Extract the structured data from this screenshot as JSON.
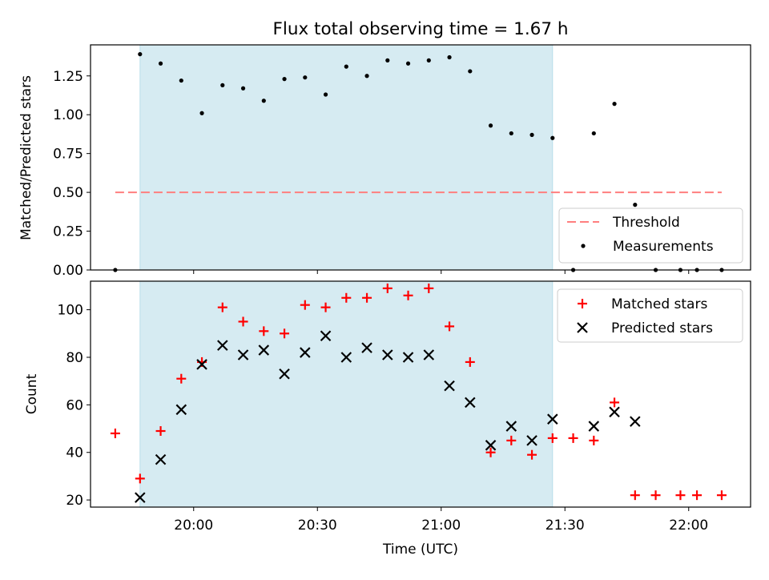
{
  "chart_data": [
    {
      "type": "scatter",
      "title": "Flux total observing time = 1.67 h",
      "xlabel": "",
      "ylabel": "Matched/Predicted stars",
      "ylim": [
        0,
        1.45
      ],
      "yticks": [
        "0.00",
        "0.25",
        "0.50",
        "0.75",
        "1.00",
        "1.25"
      ],
      "yticks_values": [
        0,
        0.25,
        0.5,
        0.75,
        1.0,
        1.25
      ],
      "observing_window": [
        "19:47",
        "21:27"
      ],
      "observing_window_color": "#add8e6",
      "threshold": {
        "name": "Threshold",
        "value": 0.5,
        "x": [
          "19:41",
          "22:08"
        ],
        "color": "#ff7f7f"
      },
      "series": [
        {
          "name": "Measurements",
          "color": "#000000",
          "x": [
            "19:41",
            "19:47",
            "19:52",
            "19:57",
            "20:02",
            "20:07",
            "20:12",
            "20:17",
            "20:22",
            "20:27",
            "20:32",
            "20:37",
            "20:42",
            "20:47",
            "20:52",
            "20:57",
            "21:02",
            "21:07",
            "21:12",
            "21:17",
            "21:22",
            "21:27",
            "21:32",
            "21:37",
            "21:42",
            "21:47",
            "21:52",
            "21:58",
            "22:02",
            "22:08"
          ],
          "y": [
            0.0,
            1.39,
            1.33,
            1.22,
            1.01,
            1.19,
            1.17,
            1.09,
            1.23,
            1.24,
            1.13,
            1.31,
            1.25,
            1.35,
            1.33,
            1.35,
            1.37,
            1.28,
            0.93,
            0.88,
            0.87,
            0.85,
            0.0,
            0.88,
            1.07,
            0.42,
            0.0,
            0.0,
            0.0,
            0.0
          ]
        }
      ],
      "legend": {
        "placement": "lower right",
        "items": [
          "Threshold",
          "Measurements"
        ]
      }
    },
    {
      "type": "scatter",
      "title": "",
      "xlabel": "Time (UTC)",
      "ylabel": "Count",
      "ylim": [
        17,
        112
      ],
      "yticks": [
        "20",
        "40",
        "60",
        "80",
        "100"
      ],
      "yticks_values": [
        20,
        40,
        60,
        80,
        100
      ],
      "xlim": [
        "19:35",
        "22:15"
      ],
      "xticks": [
        "20:00",
        "20:30",
        "21:00",
        "21:30",
        "22:00"
      ],
      "observing_window": [
        "19:47",
        "21:27"
      ],
      "observing_window_color": "#add8e6",
      "series": [
        {
          "name": "Matched stars",
          "marker": "+",
          "color": "#ff0000",
          "x": [
            "19:41",
            "19:47",
            "19:52",
            "19:57",
            "20:02",
            "20:07",
            "20:12",
            "20:17",
            "20:22",
            "20:27",
            "20:32",
            "20:37",
            "20:42",
            "20:47",
            "20:52",
            "20:57",
            "21:02",
            "21:07",
            "21:12",
            "21:17",
            "21:22",
            "21:27",
            "21:32",
            "21:37",
            "21:42",
            "21:47",
            "21:52",
            "21:58",
            "22:02",
            "22:08"
          ],
          "y": [
            48,
            29,
            49,
            71,
            78,
            101,
            95,
            91,
            90,
            102,
            101,
            105,
            105,
            109,
            106,
            109,
            93,
            78,
            40,
            45,
            39,
            46,
            46,
            45,
            61,
            22,
            22,
            22,
            22,
            22
          ]
        },
        {
          "name": "Predicted stars",
          "marker": "x",
          "color": "#000000",
          "x": [
            "19:47",
            "19:52",
            "19:57",
            "20:02",
            "20:07",
            "20:12",
            "20:17",
            "20:22",
            "20:27",
            "20:32",
            "20:37",
            "20:42",
            "20:47",
            "20:52",
            "20:57",
            "21:02",
            "21:07",
            "21:12",
            "21:17",
            "21:22",
            "21:27",
            "21:37",
            "21:42",
            "21:47"
          ],
          "y": [
            21,
            37,
            58,
            77,
            85,
            81,
            83,
            73,
            82,
            89,
            80,
            84,
            81,
            80,
            81,
            68,
            61,
            43,
            51,
            45,
            54,
            51,
            57,
            53
          ]
        }
      ],
      "legend": {
        "placement": "upper right",
        "items": [
          "Matched stars",
          "Predicted stars"
        ]
      }
    }
  ]
}
